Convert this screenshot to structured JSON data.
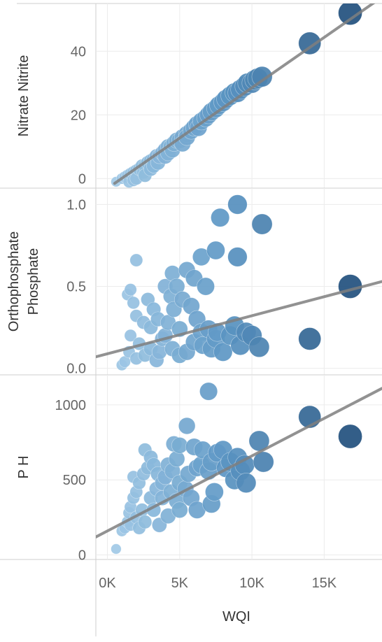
{
  "chart_data": {
    "type": "scatter",
    "grid": true,
    "x_axis": {
      "label": "WQI",
      "range": [
        -800,
        19000
      ],
      "ticks": [
        0,
        5000,
        10000,
        15000
      ],
      "tick_labels": [
        "0K",
        "5K",
        "10K",
        "15K"
      ]
    },
    "color_scale": {
      "low": "#a6cde9",
      "mid": "#5b95c3",
      "high": "#23527f"
    },
    "panels": [
      {
        "id": "nitrate",
        "ylabel_lines": [
          "Nitrate Nitrite"
        ],
        "ylim": [
          -3,
          55
        ],
        "yticks": [
          0,
          20,
          40
        ],
        "ytick_labels": [
          "0",
          "20",
          "40"
        ],
        "trend": [
          [
            500,
            -1.5
          ],
          [
            19000,
            57
          ]
        ],
        "points": [
          [
            16800,
            52
          ],
          [
            14000,
            42.5
          ],
          [
            10700,
            32
          ],
          [
            10400,
            31.5
          ],
          [
            10000,
            30
          ],
          [
            9500,
            29
          ],
          [
            9200,
            28
          ],
          [
            8800,
            27
          ],
          [
            8500,
            26
          ],
          [
            8000,
            24
          ],
          [
            7500,
            22
          ],
          [
            7000,
            20
          ],
          [
            6800,
            19
          ],
          [
            6500,
            18
          ],
          [
            6200,
            17
          ],
          [
            5800,
            15
          ],
          [
            5500,
            14
          ],
          [
            5200,
            13
          ],
          [
            5000,
            12
          ],
          [
            4800,
            12
          ],
          [
            4600,
            11
          ],
          [
            4400,
            10
          ],
          [
            4200,
            10
          ],
          [
            4000,
            9
          ],
          [
            3800,
            8
          ],
          [
            3600,
            7
          ],
          [
            3400,
            7
          ],
          [
            3200,
            6
          ],
          [
            3000,
            5.5
          ],
          [
            2800,
            5
          ],
          [
            2600,
            4
          ],
          [
            2400,
            4
          ],
          [
            2200,
            3
          ],
          [
            2000,
            2.5
          ],
          [
            1800,
            2
          ],
          [
            1600,
            1.5
          ],
          [
            1400,
            1
          ],
          [
            1200,
            0.5
          ],
          [
            1000,
            0
          ],
          [
            2000,
            0
          ],
          [
            1500,
            -1
          ],
          [
            2500,
            2
          ],
          [
            3000,
            3
          ],
          [
            3500,
            5
          ],
          [
            4000,
            7
          ],
          [
            4500,
            9
          ],
          [
            5500,
            13
          ],
          [
            6000,
            16
          ],
          [
            7200,
            21
          ],
          [
            8200,
            25
          ],
          [
            9000,
            27
          ],
          [
            9700,
            30
          ],
          [
            10200,
            31
          ],
          [
            1800,
            -0.5
          ],
          [
            2600,
            1
          ],
          [
            3200,
            4
          ],
          [
            4200,
            8
          ],
          [
            5200,
            11
          ],
          [
            6300,
            16
          ],
          [
            7700,
            23
          ],
          [
            600,
            -1
          ]
        ]
      },
      {
        "id": "orthophosphate",
        "ylabel_lines": [
          "Orthophosphate",
          "Phosphate"
        ],
        "ylim": [
          -0.04,
          1.1
        ],
        "yticks": [
          0,
          0.5,
          1
        ],
        "ytick_labels": [
          "0.0",
          "0.5",
          "1.0"
        ],
        "trend": [
          [
            -800,
            0.07
          ],
          [
            19000,
            0.53
          ]
        ],
        "points": [
          [
            9000,
            1.0
          ],
          [
            7800,
            0.92
          ],
          [
            10700,
            0.88
          ],
          [
            7500,
            0.72
          ],
          [
            9000,
            0.68
          ],
          [
            6500,
            0.68
          ],
          [
            5500,
            0.6
          ],
          [
            6000,
            0.55
          ],
          [
            4500,
            0.58
          ],
          [
            4000,
            0.5
          ],
          [
            4800,
            0.5
          ],
          [
            6800,
            0.5
          ],
          [
            2000,
            0.66
          ],
          [
            16800,
            0.5
          ],
          [
            14000,
            0.18
          ],
          [
            10500,
            0.13
          ],
          [
            9200,
            0.14
          ],
          [
            8500,
            0.2
          ],
          [
            7500,
            0.18
          ],
          [
            7000,
            0.24
          ],
          [
            6500,
            0.22
          ],
          [
            6000,
            0.16
          ],
          [
            5500,
            0.1
          ],
          [
            5000,
            0.08
          ],
          [
            4500,
            0.12
          ],
          [
            4000,
            0.2
          ],
          [
            3500,
            0.3
          ],
          [
            3000,
            0.25
          ],
          [
            2500,
            0.28
          ],
          [
            2000,
            0.32
          ],
          [
            1800,
            0.4
          ],
          [
            1600,
            0.2
          ],
          [
            1500,
            0.1
          ],
          [
            1200,
            0.04
          ],
          [
            1000,
            0.02
          ],
          [
            2200,
            0.15
          ],
          [
            2600,
            0.08
          ],
          [
            3000,
            0.12
          ],
          [
            3400,
            0.05
          ],
          [
            3800,
            0.18
          ],
          [
            4200,
            0.28
          ],
          [
            4600,
            0.36
          ],
          [
            5200,
            0.42
          ],
          [
            5800,
            0.38
          ],
          [
            6200,
            0.3
          ],
          [
            7200,
            0.12
          ],
          [
            8000,
            0.1
          ],
          [
            9600,
            0.22
          ],
          [
            10000,
            0.2
          ],
          [
            1400,
            0.45
          ],
          [
            1600,
            0.48
          ],
          [
            2800,
            0.42
          ],
          [
            3200,
            0.36
          ],
          [
            4400,
            0.44
          ],
          [
            5000,
            0.24
          ],
          [
            6600,
            0.14
          ],
          [
            7600,
            0.22
          ],
          [
            8800,
            0.26
          ],
          [
            2000,
            0.06
          ],
          [
            3600,
            0.1
          ]
        ]
      },
      {
        "id": "ph",
        "ylabel_lines": [
          "P H"
        ],
        "ylim": [
          -30,
          1200
        ],
        "yticks": [
          0,
          500,
          1000
        ],
        "ytick_labels": [
          "0",
          "500",
          "1000"
        ],
        "trend": [
          [
            -800,
            120
          ],
          [
            19000,
            1110
          ]
        ],
        "points": [
          [
            16800,
            790
          ],
          [
            14000,
            920
          ],
          [
            7000,
            1090
          ],
          [
            10500,
            760
          ],
          [
            10800,
            620
          ],
          [
            9500,
            600
          ],
          [
            9000,
            650
          ],
          [
            8500,
            620
          ],
          [
            8000,
            700
          ],
          [
            7600,
            680
          ],
          [
            7200,
            620
          ],
          [
            7000,
            560
          ],
          [
            6500,
            600
          ],
          [
            6000,
            720
          ],
          [
            5500,
            860
          ],
          [
            5000,
            730
          ],
          [
            4800,
            640
          ],
          [
            4500,
            560
          ],
          [
            4200,
            600
          ],
          [
            4000,
            520
          ],
          [
            3800,
            480
          ],
          [
            3500,
            540
          ],
          [
            3200,
            600
          ],
          [
            3000,
            650
          ],
          [
            2800,
            580
          ],
          [
            2500,
            540
          ],
          [
            2200,
            480
          ],
          [
            2000,
            420
          ],
          [
            1800,
            380
          ],
          [
            1600,
            320
          ],
          [
            1500,
            280
          ],
          [
            1400,
            220
          ],
          [
            1200,
            180
          ],
          [
            1000,
            160
          ],
          [
            600,
            40
          ],
          [
            2000,
            250
          ],
          [
            2600,
            220
          ],
          [
            3200,
            300
          ],
          [
            3800,
            380
          ],
          [
            4400,
            420
          ],
          [
            5000,
            480
          ],
          [
            5600,
            540
          ],
          [
            6200,
            580
          ],
          [
            7400,
            420
          ],
          [
            8800,
            500
          ],
          [
            9600,
            480
          ],
          [
            1600,
            200
          ],
          [
            2400,
            300
          ],
          [
            3000,
            380
          ],
          [
            3600,
            200
          ],
          [
            4200,
            260
          ],
          [
            5000,
            300
          ],
          [
            5800,
            380
          ],
          [
            6200,
            300
          ],
          [
            7200,
            340
          ],
          [
            1800,
            520
          ],
          [
            2600,
            700
          ],
          [
            4600,
            740
          ],
          [
            6600,
            700
          ],
          [
            8200,
            580
          ],
          [
            9200,
            560
          ],
          [
            3400,
            440
          ],
          [
            4800,
            360
          ],
          [
            5400,
            440
          ],
          [
            2200,
            180
          ]
        ]
      }
    ]
  }
}
